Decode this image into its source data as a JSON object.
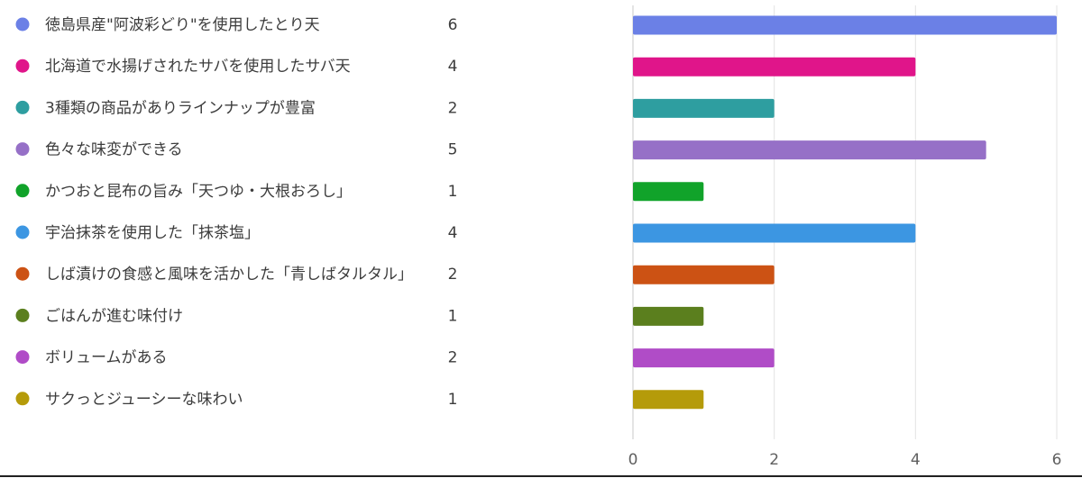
{
  "chart_data": {
    "type": "bar",
    "orientation": "horizontal",
    "categories": [
      "徳島県産\"阿波彩どり\"を使用したとり天",
      "北海道で水揚げされたサバを使用したサバ天",
      "3種類の商品がありラインナップが豊富",
      "色々な味変ができる",
      "かつおと昆布の旨み「天つゆ・大根おろし」",
      "宇治抹茶を使用した「抹茶塩」",
      "しば漬けの食感と風味を活かした「青しばタルタル」",
      "ごはんが進む味付け",
      "ボリュームがある",
      "サクっとジューシーな味わい"
    ],
    "values": [
      6,
      4,
      2,
      5,
      1,
      4,
      2,
      1,
      2,
      1
    ],
    "colors": [
      "#6b80e6",
      "#e0158a",
      "#2e9ea0",
      "#9670c7",
      "#11a32a",
      "#3c96e2",
      "#cc5214",
      "#5b7f1e",
      "#b04cc7",
      "#b59b0a"
    ],
    "xlim": [
      0,
      6
    ],
    "xticks": [
      0,
      2,
      4,
      6
    ],
    "grid": true,
    "legend": "left"
  }
}
